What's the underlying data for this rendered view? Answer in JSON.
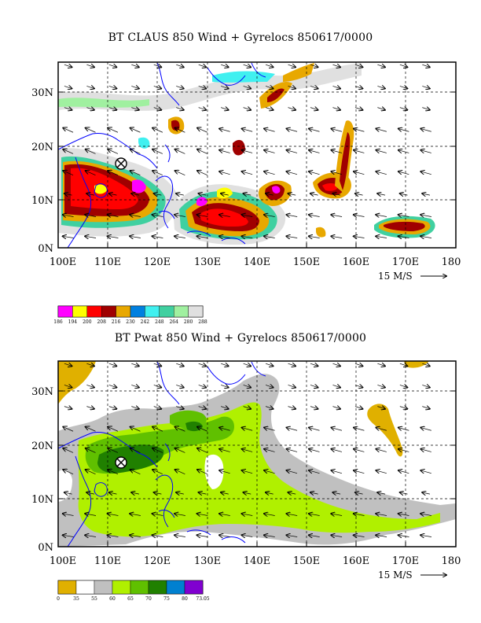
{
  "panels": [
    {
      "title": "BT CLAUS 850 Wind + Gyrelocs 850617/0000",
      "y_ticks": [
        "0N",
        "10N",
        "20N",
        "30N"
      ],
      "x_ticks": [
        "100E",
        "110E",
        "120E",
        "130E",
        "140E",
        "150E",
        "160E",
        "170E",
        "180"
      ],
      "vector_ref": "15 M/S",
      "legend": {
        "colors": [
          "#ff00ff",
          "#ffff00",
          "#ff0000",
          "#a00000",
          "#e8a800",
          "#0080e0",
          "#40f0f0",
          "#40d0a0",
          "#a0f0a0",
          "#e0e0e0"
        ],
        "labels": [
          "186",
          "194",
          "200",
          "208",
          "216",
          "230",
          "242",
          "248",
          "264",
          "280",
          "288"
        ]
      }
    },
    {
      "title": "BT Pwat 850 Wind + Gyrelocs 850617/0000",
      "y_ticks": [
        "0N",
        "10N",
        "20N",
        "30N"
      ],
      "x_ticks": [
        "100E",
        "110E",
        "120E",
        "130E",
        "140E",
        "150E",
        "160E",
        "170E",
        "180"
      ],
      "vector_ref": "15 M/S",
      "legend": {
        "colors": [
          "#e0b000",
          "#ffffff",
          "#c0c0c0",
          "#b0f000",
          "#60c000",
          "#208000",
          "#0080d0",
          "#8000d0"
        ],
        "labels": [
          "0",
          "35",
          "55",
          "60",
          "65",
          "70",
          "75",
          "80",
          "73.05"
        ]
      }
    }
  ],
  "symbols": {
    "storm_marker": "circled-x-icon"
  }
}
